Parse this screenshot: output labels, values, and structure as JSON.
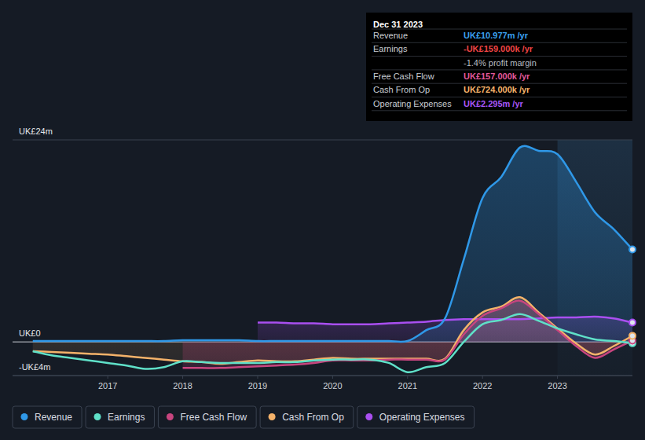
{
  "chart_data": {
    "type": "line",
    "x": [
      2016,
      2016.25,
      2016.5,
      2016.75,
      2017,
      2017.25,
      2017.5,
      2017.75,
      2018,
      2018.25,
      2018.5,
      2018.75,
      2019,
      2019.25,
      2019.5,
      2019.75,
      2020,
      2020.25,
      2020.5,
      2020.75,
      2021,
      2021.25,
      2021.5,
      2021.75,
      2022,
      2022.25,
      2022.5,
      2022.75,
      2023,
      2023.25,
      2023.5,
      2023.75,
      2024
    ],
    "xlim": [
      2015.73,
      2024
    ],
    "xticks": [
      2017,
      2018,
      2019,
      2020,
      2021,
      2022,
      2023
    ],
    "ylim": [
      -4,
      24
    ],
    "yticks": [
      {
        "value": -4,
        "label": "-UK£4m"
      },
      {
        "value": 0,
        "label": "UK£0"
      },
      {
        "value": 24,
        "label": "UK£24m"
      }
    ],
    "grid": true,
    "legend": "bottom",
    "series": [
      {
        "name": "Revenue",
        "color": "#2f98e8",
        "values": [
          0.1,
          0.1,
          0.1,
          0.1,
          0.1,
          0.1,
          0.1,
          0.1,
          0.2,
          0.2,
          0.2,
          0.2,
          0.1,
          0.1,
          0.1,
          0.1,
          0.1,
          0.1,
          0.1,
          0.1,
          0.1,
          1.4,
          2.8,
          9.8,
          17.1,
          19.6,
          23.1,
          22.7,
          22.3,
          19.0,
          15.4,
          13.4,
          10.977
        ]
      },
      {
        "name": "Earnings",
        "color": "#5fe0c8",
        "values": [
          -1.1,
          -1.6,
          -1.9,
          -2.2,
          -2.5,
          -2.8,
          -3.2,
          -3.0,
          -2.3,
          -2.4,
          -2.5,
          -2.5,
          -2.5,
          -2.4,
          -2.4,
          -2.2,
          -2.1,
          -2.1,
          -2.1,
          -2.5,
          -3.6,
          -3.0,
          -2.5,
          0,
          2.1,
          2.6,
          3.3,
          2.5,
          1.6,
          0.9,
          0.3,
          0.1,
          -0.159
        ]
      },
      {
        "name": "Free Cash Flow",
        "color": "#c8457f",
        "values": [
          null,
          null,
          null,
          null,
          null,
          null,
          null,
          null,
          -3.1,
          -3.1,
          -3.1,
          -3.0,
          -2.9,
          -2.8,
          -2.7,
          -2.5,
          -2.2,
          -2.2,
          -2.2,
          -2.1,
          -2.1,
          -2.1,
          -2.1,
          0.9,
          3.1,
          4.0,
          4.9,
          3.3,
          1.4,
          -0.5,
          -1.9,
          -0.9,
          0.157
        ]
      },
      {
        "name": "Cash From Op",
        "color": "#f4b26a",
        "values": [
          -1.1,
          -1.2,
          -1.3,
          -1.4,
          -1.5,
          -1.7,
          -1.9,
          -2.1,
          -2.3,
          -2.4,
          -2.6,
          -2.4,
          -2.2,
          -2.3,
          -2.3,
          -2.1,
          -1.9,
          -2.0,
          -2.0,
          -2.0,
          -2.0,
          -2.0,
          -2.0,
          1.4,
          3.5,
          4.2,
          5.3,
          3.5,
          1.6,
          -0.2,
          -1.5,
          -0.5,
          0.724
        ]
      },
      {
        "name": "Operating Expenses",
        "color": "#a94ff0",
        "values": [
          null,
          null,
          null,
          null,
          null,
          null,
          null,
          null,
          null,
          null,
          null,
          null,
          2.3,
          2.3,
          2.2,
          2.2,
          2.1,
          2.1,
          2.1,
          2.2,
          2.3,
          2.4,
          2.6,
          2.7,
          2.7,
          2.7,
          2.7,
          2.8,
          2.9,
          2.9,
          3.0,
          2.8,
          2.295
        ]
      }
    ],
    "annotations": {
      "title": "Dec 31 2023",
      "rows": [
        {
          "label": "Revenue",
          "value": "UK£10.977m /yr",
          "color": "#3aa0f0"
        },
        {
          "label": "Earnings",
          "value": "-UK£159.000k /yr",
          "color": "#ef4444",
          "note": "-1.4% profit margin"
        },
        {
          "label": "Free Cash Flow",
          "value": "UK£157.000k /yr",
          "color": "#e0589a"
        },
        {
          "label": "Cash From Op",
          "value": "UK£724.000k /yr",
          "color": "#f4b26a"
        },
        {
          "label": "Operating Expenses",
          "value": "UK£2.295m /yr",
          "color": "#a855f7"
        }
      ]
    }
  }
}
